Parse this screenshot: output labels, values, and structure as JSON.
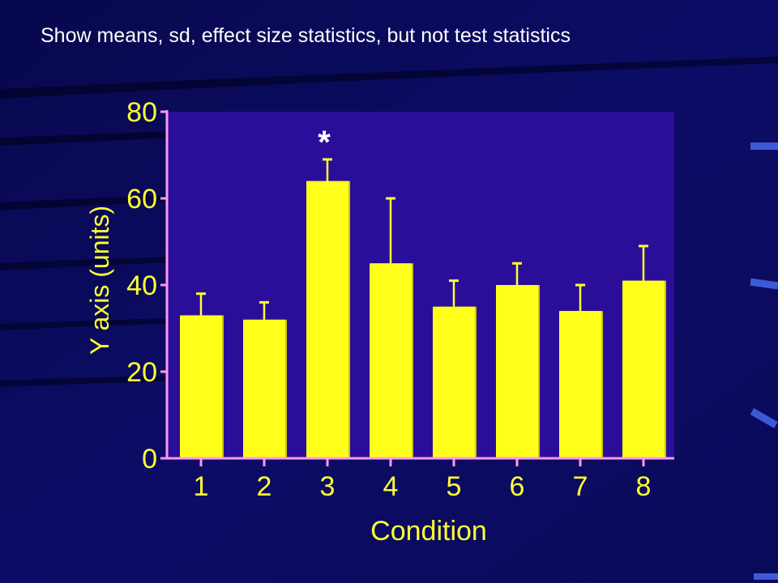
{
  "slide": {
    "title": "Show means, sd, effect size statistics, but not test statistics"
  },
  "colors": {
    "background": "#0a0a5e",
    "plot_area": "#2a0e9a",
    "bar_fill": "#ffff1a",
    "axis": "#ff99ee",
    "error_bar": "#ffff33",
    "tick_label": "#ffff33",
    "title_text": "#ffffff"
  },
  "chart_data": {
    "type": "bar",
    "categories": [
      "1",
      "2",
      "3",
      "4",
      "5",
      "6",
      "7",
      "8"
    ],
    "values": [
      33,
      32,
      64,
      45,
      35,
      40,
      34,
      41
    ],
    "error_upper": [
      38,
      36,
      69,
      60,
      41,
      45,
      40,
      49
    ],
    "significance_markers": [
      {
        "category": "3",
        "label": "*"
      }
    ],
    "xlabel": "Condition",
    "ylabel": "Y axis (units)",
    "ylim": [
      0,
      80
    ],
    "yticks": [
      0,
      20,
      40,
      60,
      80
    ],
    "grid": false,
    "legend": "none"
  }
}
